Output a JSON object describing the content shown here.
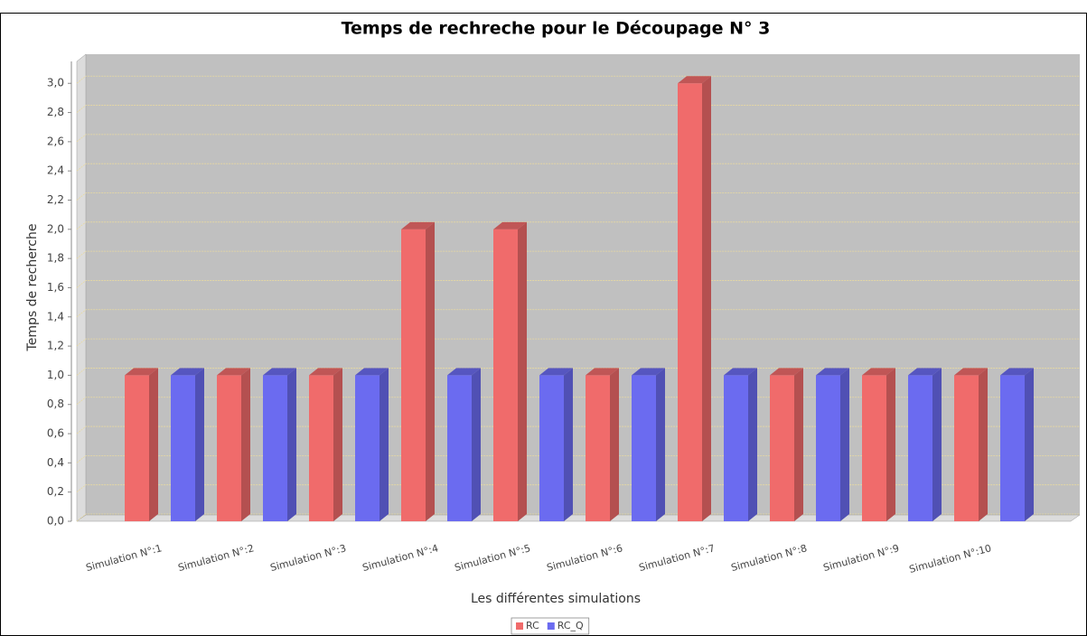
{
  "chart_data": {
    "type": "bar3d",
    "title": "Temps de rechreche pour le Découpage N° 3",
    "xlabel": "Les différentes simulations",
    "ylabel": "Temps de recherche",
    "categories": [
      "Simulation N°:1",
      "Simulation N°:2",
      "Simulation N°:3",
      "Simulation N°:4",
      "Simulation N°:5",
      "Simulation N°:6",
      "Simulation N°:7",
      "Simulation N°:8",
      "Simulation N°:9",
      "Simulation N°:10"
    ],
    "series": [
      {
        "name": "RC",
        "color": "#f06b6b",
        "values": [
          1,
          1,
          1,
          2,
          2,
          1,
          3,
          1,
          1,
          1
        ]
      },
      {
        "name": "RC_Q",
        "color": "#6b6bf0",
        "values": [
          1,
          1,
          1,
          1,
          1,
          1,
          1,
          1,
          1,
          1
        ]
      }
    ],
    "ylim": [
      0,
      3.15
    ],
    "yticks": [
      {
        "value": 0,
        "label": "0,0"
      },
      {
        "value": 0.2,
        "label": "0,2"
      },
      {
        "value": 0.4,
        "label": "0,4"
      },
      {
        "value": 0.6,
        "label": "0,6"
      },
      {
        "value": 0.8,
        "label": "0,8"
      },
      {
        "value": 1,
        "label": "1,0"
      },
      {
        "value": 1.2,
        "label": "1,2"
      },
      {
        "value": 1.4,
        "label": "1,4"
      },
      {
        "value": 1.6,
        "label": "1,6"
      },
      {
        "value": 1.8,
        "label": "1,8"
      },
      {
        "value": 2,
        "label": "2,0"
      },
      {
        "value": 2.2,
        "label": "2,2"
      },
      {
        "value": 2.4,
        "label": "2,4"
      },
      {
        "value": 2.6,
        "label": "2,6"
      },
      {
        "value": 2.8,
        "label": "2,8"
      },
      {
        "value": 3,
        "label": "3,0"
      }
    ],
    "grid": true,
    "legend": "bottom"
  }
}
